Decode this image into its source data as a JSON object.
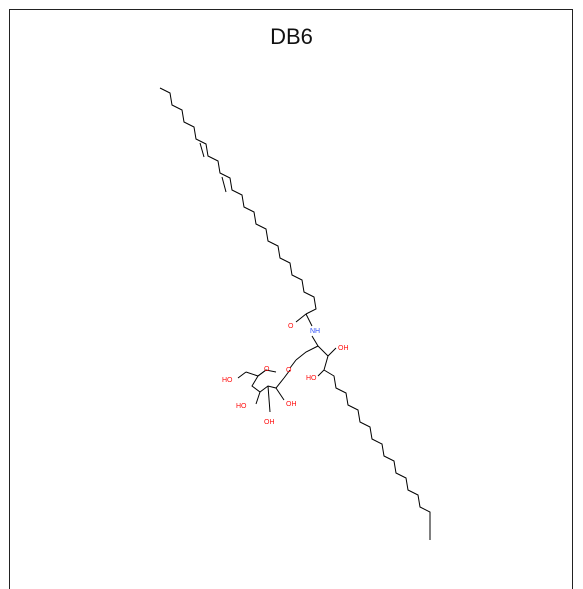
{
  "title": "DB6",
  "colors": {
    "bond": "#000000",
    "oxygen": "#ff0d0d",
    "nitrogen": "#3050f8",
    "wedge_stereo": "#cc0000"
  },
  "atom_labels": {
    "carbonyl_o": "O",
    "amide_nh": "NH",
    "glycosidic_o": "O",
    "ring_o": "O",
    "oh_c6": "HO",
    "oh_c4": "HO",
    "oh_c3": "OH",
    "oh_c2": "OH",
    "oh_3p": "OH",
    "oh_4p": "HO"
  }
}
